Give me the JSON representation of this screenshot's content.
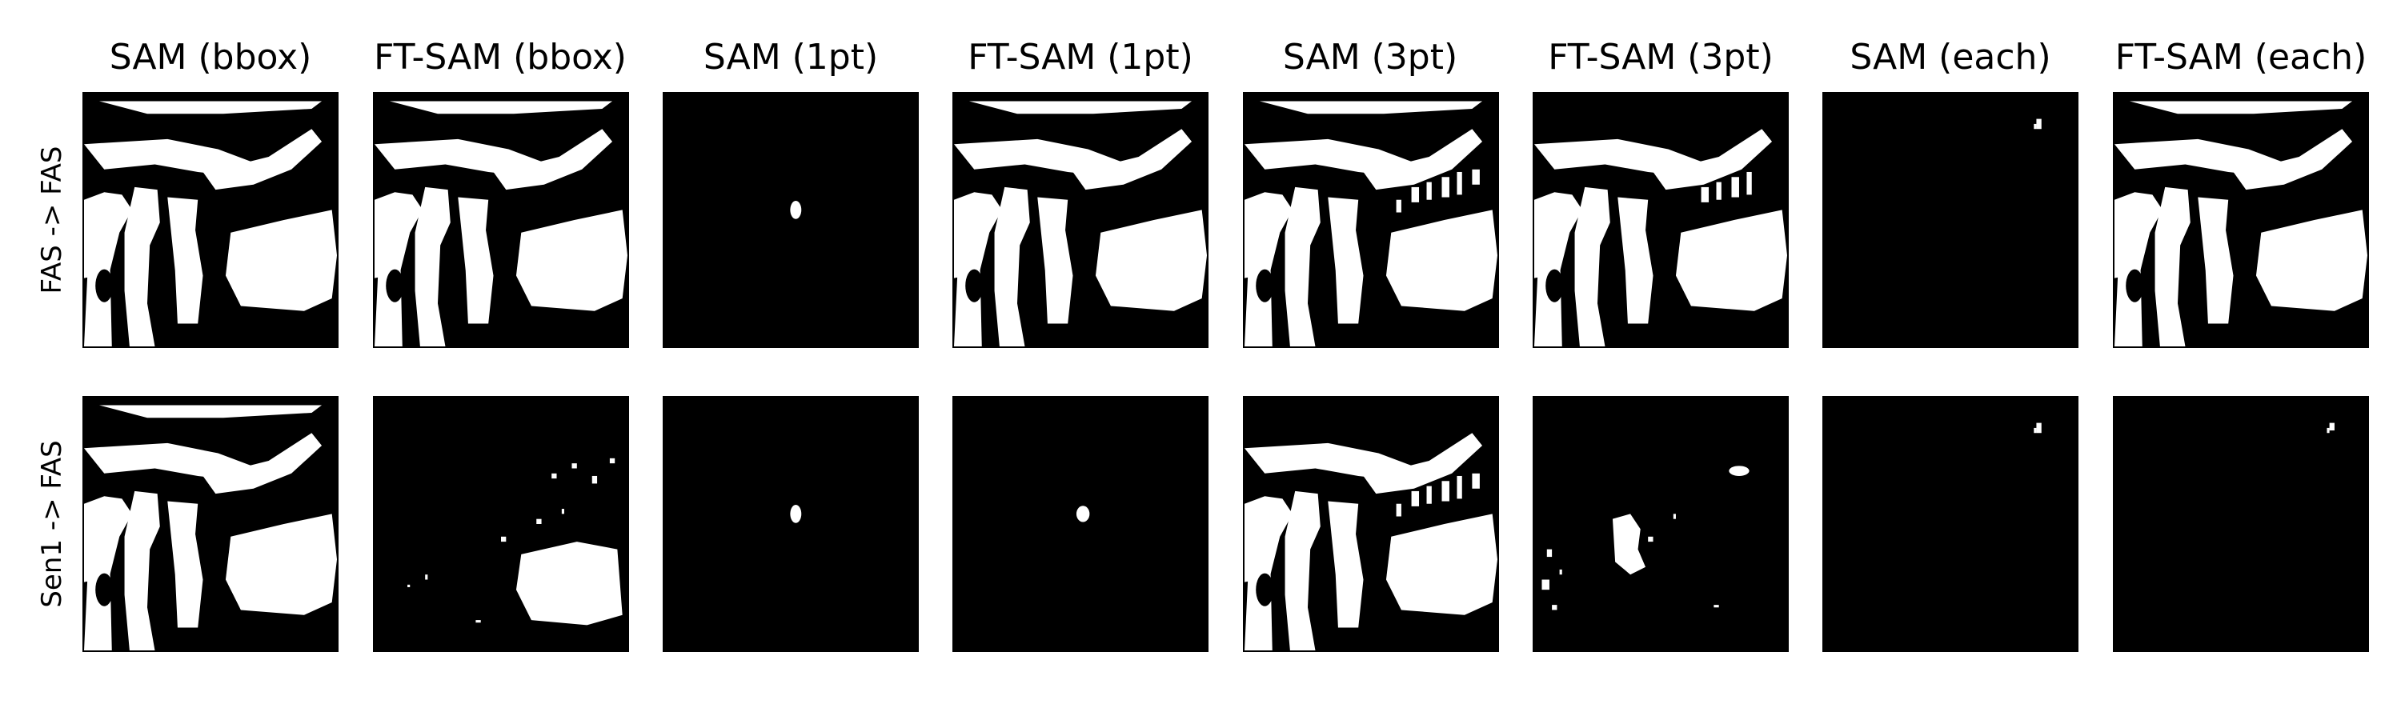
{
  "figure": {
    "columns": [
      "SAM (bbox)",
      "FT-SAM (bbox)",
      "SAM (1pt)",
      "FT-SAM (1pt)",
      "SAM (3pt)",
      "FT-SAM (3pt)",
      "SAM (each)",
      "FT-SAM (each)"
    ],
    "rows": [
      "FAS -> FAS",
      "Sen1 -> FAS"
    ],
    "panel_content": [
      [
        "full-mask",
        "full-mask",
        "small-blob",
        "full-mask",
        "dense-mask",
        "dense-mask",
        "tiny-speck",
        "full-mask"
      ],
      [
        "full-mask",
        "partial-mask",
        "small-blob",
        "small-blob",
        "dense-mask",
        "sparse-mask",
        "tiny-speck",
        "tiny-speck"
      ]
    ],
    "colors": {
      "background": "#000000",
      "mask": "#ffffff",
      "text": "#000000"
    }
  }
}
